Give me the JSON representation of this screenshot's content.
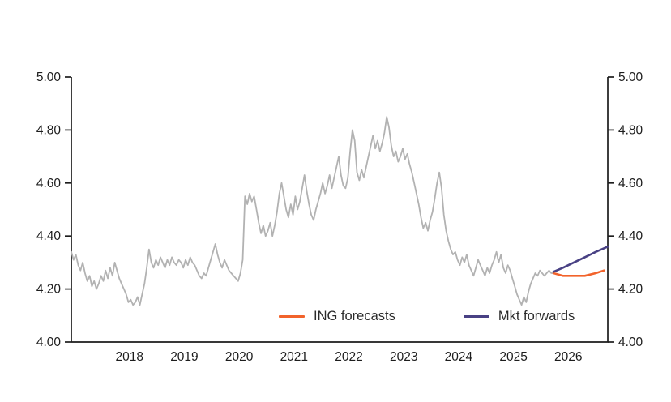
{
  "chart_data": {
    "type": "line",
    "title": "",
    "xlabel": "",
    "ylabel": "",
    "grid": false,
    "legend_position": "bottom-inside",
    "axis_color": "#1d1d1d",
    "ylim": [
      4.0,
      5.0
    ],
    "xlim": [
      2016.94,
      2026.72
    ],
    "yticks": [
      4.0,
      4.2,
      4.4,
      4.6,
      4.8,
      5.0
    ],
    "ytick_labels": [
      "4.00",
      "4.20",
      "4.40",
      "4.60",
      "4.80",
      "5.00"
    ],
    "ytick_sides": "both",
    "xticks": [
      2018,
      2019,
      2020,
      2021,
      2022,
      2023,
      2024,
      2025,
      2026
    ],
    "xtick_labels": [
      "2018",
      "2019",
      "2020",
      "2021",
      "2022",
      "2023",
      "2024",
      "2025",
      "2026"
    ],
    "legend": [
      "ING forecasts",
      "Mkt forwards"
    ],
    "series": [
      {
        "name": "history",
        "color": "#b2b2b2",
        "width": 1.8,
        "in_legend": false,
        "x0": 2016.94,
        "dx": 0.0416667,
        "y": [
          4.34,
          4.31,
          4.33,
          4.29,
          4.27,
          4.3,
          4.26,
          4.23,
          4.25,
          4.21,
          4.23,
          4.2,
          4.22,
          4.25,
          4.23,
          4.27,
          4.24,
          4.28,
          4.25,
          4.3,
          4.27,
          4.24,
          4.22,
          4.2,
          4.18,
          4.15,
          4.16,
          4.14,
          4.15,
          4.17,
          4.14,
          4.18,
          4.22,
          4.28,
          4.35,
          4.3,
          4.28,
          4.31,
          4.29,
          4.32,
          4.3,
          4.28,
          4.31,
          4.29,
          4.32,
          4.3,
          4.29,
          4.31,
          4.3,
          4.28,
          4.31,
          4.29,
          4.32,
          4.3,
          4.29,
          4.27,
          4.25,
          4.24,
          4.26,
          4.25,
          4.28,
          4.31,
          4.34,
          4.37,
          4.33,
          4.3,
          4.28,
          4.31,
          4.29,
          4.27,
          4.26,
          4.25,
          4.24,
          4.23,
          4.26,
          4.31,
          4.55,
          4.52,
          4.56,
          4.53,
          4.55,
          4.5,
          4.45,
          4.41,
          4.44,
          4.4,
          4.42,
          4.45,
          4.4,
          4.44,
          4.49,
          4.56,
          4.6,
          4.55,
          4.5,
          4.47,
          4.52,
          4.48,
          4.55,
          4.5,
          4.53,
          4.58,
          4.63,
          4.57,
          4.52,
          4.48,
          4.46,
          4.5,
          4.53,
          4.56,
          4.6,
          4.56,
          4.59,
          4.63,
          4.58,
          4.62,
          4.66,
          4.7,
          4.63,
          4.59,
          4.58,
          4.62,
          4.72,
          4.8,
          4.76,
          4.64,
          4.61,
          4.65,
          4.62,
          4.66,
          4.7,
          4.74,
          4.78,
          4.73,
          4.76,
          4.72,
          4.75,
          4.79,
          4.85,
          4.81,
          4.74,
          4.7,
          4.72,
          4.68,
          4.7,
          4.73,
          4.69,
          4.71,
          4.67,
          4.64,
          4.6,
          4.56,
          4.52,
          4.47,
          4.43,
          4.45,
          4.42,
          4.46,
          4.49,
          4.54,
          4.6,
          4.64,
          4.58,
          4.48,
          4.42,
          4.38,
          4.35,
          4.33,
          4.34,
          4.31,
          4.29,
          4.32,
          4.3,
          4.33,
          4.29,
          4.27,
          4.25,
          4.28,
          4.31,
          4.29,
          4.27,
          4.25,
          4.28,
          4.26,
          4.29,
          4.31,
          4.34,
          4.3,
          4.33,
          4.28,
          4.26,
          4.29,
          4.27,
          4.24,
          4.21,
          4.18,
          4.16,
          4.14,
          4.17,
          4.15,
          4.19,
          4.22,
          4.24,
          4.26,
          4.25,
          4.27,
          4.26,
          4.25,
          4.26,
          4.27,
          4.26,
          4.26
        ]
      },
      {
        "name": "ING forecasts",
        "color": "#f2632b",
        "width": 2.6,
        "in_legend": true,
        "x": [
          2025.73,
          2025.9,
          2026.1,
          2026.3,
          2026.5,
          2026.65
        ],
        "y": [
          4.26,
          4.25,
          4.25,
          4.25,
          4.26,
          4.27
        ]
      },
      {
        "name": "Mkt forwards",
        "color": "#494184",
        "width": 2.6,
        "in_legend": true,
        "x": [
          2025.73,
          2025.9,
          2026.1,
          2026.3,
          2026.5,
          2026.72
        ],
        "y": [
          4.265,
          4.28,
          4.3,
          4.32,
          4.34,
          4.36
        ]
      }
    ]
  }
}
